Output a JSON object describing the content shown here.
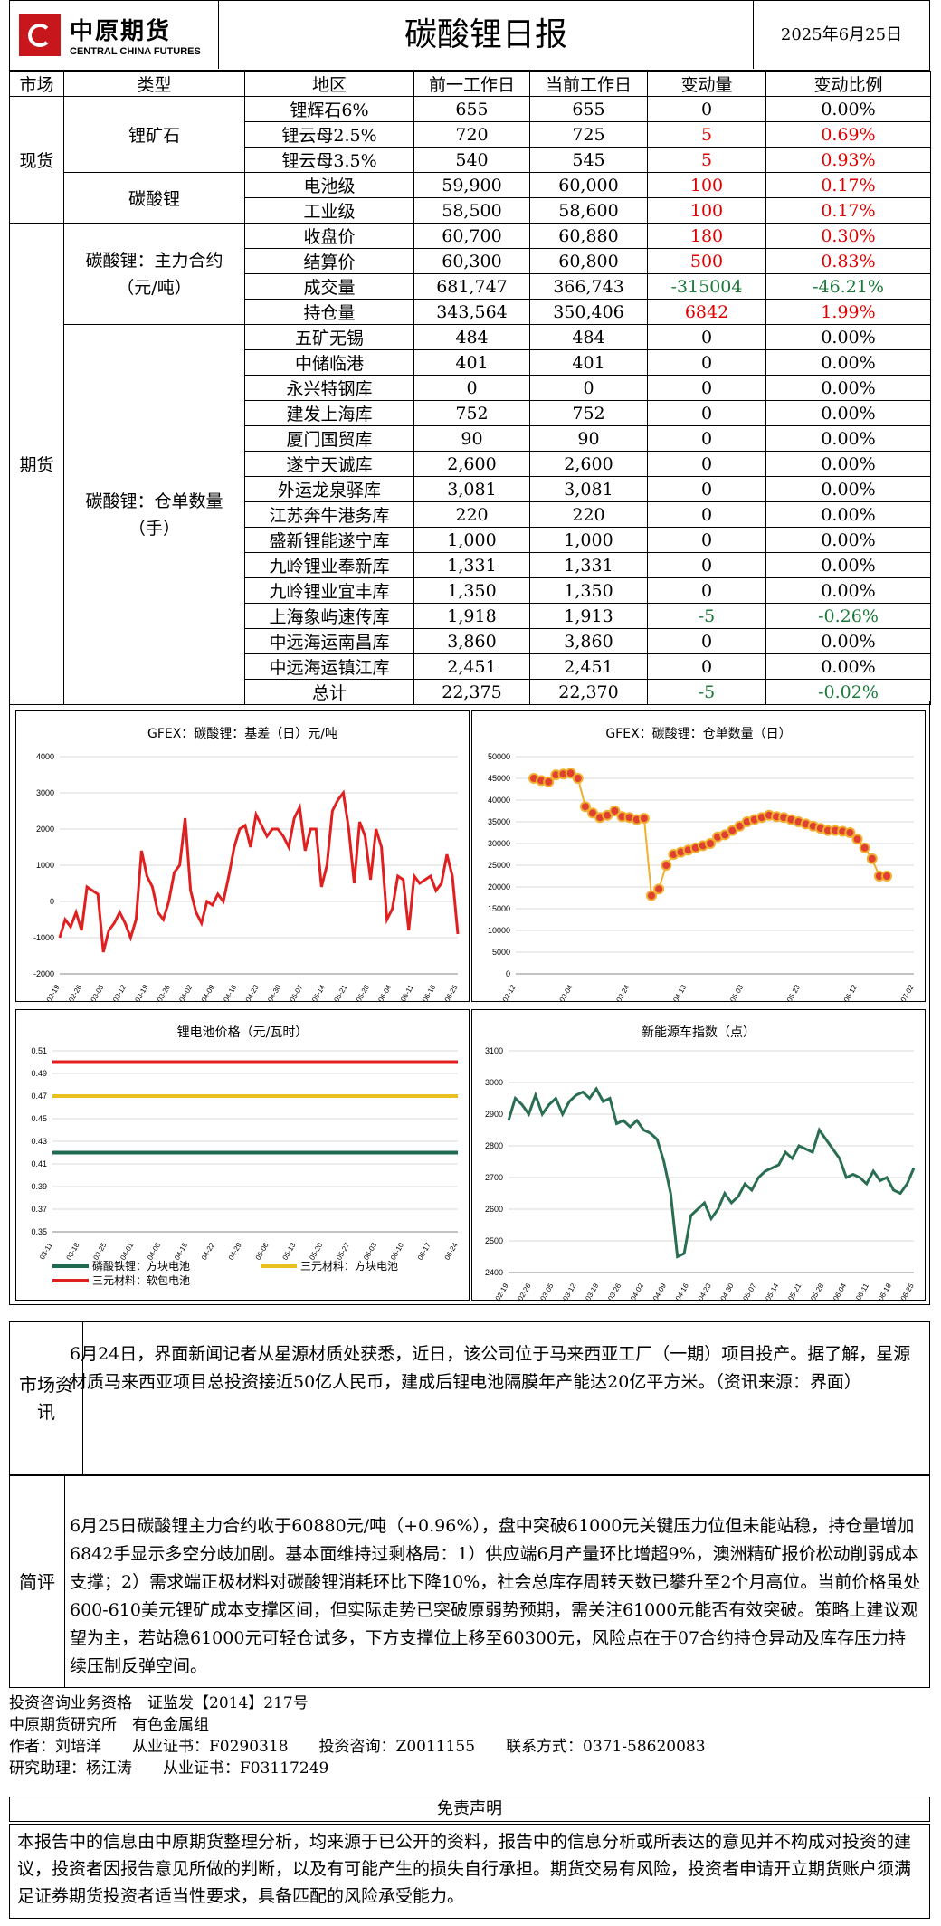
{
  "header": {
    "logo_cn": "中原期货",
    "logo_en": "CENTRAL CHINA FUTURES",
    "title": "碳酸锂日报",
    "date": "2025年6月25日"
  },
  "table": {
    "headers": [
      "市场",
      "类型",
      "地区",
      "前一工作日",
      "当前工作日",
      "变动量",
      "变动比例"
    ],
    "spot_label": "现货",
    "futures_label": "期货",
    "ore_label": "锂矿石",
    "carbonate_label": "碳酸锂",
    "main_contract_label": "碳酸锂：主力合约（元/吨）",
    "warrant_label": "碳酸锂：仓单数量（手）",
    "spot_ore": [
      {
        "name": "锂辉石6%",
        "prev": "655",
        "curr": "655",
        "chg": "0",
        "pct": "0.00%",
        "color": ""
      },
      {
        "name": "锂云母2.5%",
        "prev": "720",
        "curr": "725",
        "chg": "5",
        "pct": "0.69%",
        "color": "red"
      },
      {
        "name": "锂云母3.5%",
        "prev": "540",
        "curr": "545",
        "chg": "5",
        "pct": "0.93%",
        "color": "red"
      }
    ],
    "spot_carbonate": [
      {
        "name": "电池级",
        "prev": "59,900",
        "curr": "60,000",
        "chg": "100",
        "pct": "0.17%",
        "color": "red"
      },
      {
        "name": "工业级",
        "prev": "58,500",
        "curr": "58,600",
        "chg": "100",
        "pct": "0.17%",
        "color": "red"
      }
    ],
    "main_contract": [
      {
        "name": "收盘价",
        "prev": "60,700",
        "curr": "60,880",
        "chg": "180",
        "pct": "0.30%",
        "color": "red"
      },
      {
        "name": "结算价",
        "prev": "60,300",
        "curr": "60,800",
        "chg": "500",
        "pct": "0.83%",
        "color": "red"
      },
      {
        "name": "成交量",
        "prev": "681,747",
        "curr": "366,743",
        "chg": "-315004",
        "pct": "-46.21%",
        "color": "green"
      },
      {
        "name": "持仓量",
        "prev": "343,564",
        "curr": "350,406",
        "chg": "6842",
        "pct": "1.99%",
        "color": "red"
      }
    ],
    "warrants": [
      {
        "name": "五矿无锡",
        "prev": "484",
        "curr": "484",
        "chg": "0",
        "pct": "0.00%",
        "color": ""
      },
      {
        "name": "中储临港",
        "prev": "401",
        "curr": "401",
        "chg": "0",
        "pct": "0.00%",
        "color": ""
      },
      {
        "name": "永兴特钢库",
        "prev": "0",
        "curr": "0",
        "chg": "0",
        "pct": "0.00%",
        "color": ""
      },
      {
        "name": "建发上海库",
        "prev": "752",
        "curr": "752",
        "chg": "0",
        "pct": "0.00%",
        "color": ""
      },
      {
        "name": "厦门国贸库",
        "prev": "90",
        "curr": "90",
        "chg": "0",
        "pct": "0.00%",
        "color": ""
      },
      {
        "name": "遂宁天诚库",
        "prev": "2,600",
        "curr": "2,600",
        "chg": "0",
        "pct": "0.00%",
        "color": ""
      },
      {
        "name": "外运龙泉驿库",
        "prev": "3,081",
        "curr": "3,081",
        "chg": "0",
        "pct": "0.00%",
        "color": ""
      },
      {
        "name": "江苏奔牛港务库",
        "prev": "220",
        "curr": "220",
        "chg": "0",
        "pct": "0.00%",
        "color": ""
      },
      {
        "name": "盛新锂能遂宁库",
        "prev": "1,000",
        "curr": "1,000",
        "chg": "0",
        "pct": "0.00%",
        "color": ""
      },
      {
        "name": "九岭锂业奉新库",
        "prev": "1,331",
        "curr": "1,331",
        "chg": "0",
        "pct": "0.00%",
        "color": ""
      },
      {
        "name": "九岭锂业宜丰库",
        "prev": "1,350",
        "curr": "1,350",
        "chg": "0",
        "pct": "0.00%",
        "color": ""
      },
      {
        "name": "上海象屿速传库",
        "prev": "1,918",
        "curr": "1,913",
        "chg": "-5",
        "pct": "-0.26%",
        "color": "green"
      },
      {
        "name": "中远海运南昌库",
        "prev": "3,860",
        "curr": "3,860",
        "chg": "0",
        "pct": "0.00%",
        "color": ""
      },
      {
        "name": "中远海运镇江库",
        "prev": "2,451",
        "curr": "2,451",
        "chg": "0",
        "pct": "0.00%",
        "color": ""
      },
      {
        "name": "总计",
        "prev": "22,375",
        "curr": "22,370",
        "chg": "-5",
        "pct": "-0.02%",
        "color": "green"
      }
    ]
  },
  "chart_data": [
    {
      "type": "line",
      "title": "GFEX：碳酸锂：基差（日）元/吨",
      "color": "#e02020",
      "ylim": [
        -2000,
        4000
      ],
      "yticks": [
        -2000,
        -1000,
        0,
        1000,
        2000,
        3000,
        4000
      ],
      "x_ticks": [
        "02-19",
        "02-26",
        "03-05",
        "03-12",
        "03-19",
        "03-26",
        "04-02",
        "04-09",
        "04-16",
        "04-23",
        "04-30",
        "05-07",
        "05-14",
        "05-21",
        "05-28",
        "06-04",
        "06-11",
        "06-18",
        "06-25"
      ],
      "values": [
        -1000,
        -500,
        -700,
        -300,
        -800,
        400,
        300,
        200,
        -1400,
        -800,
        -600,
        -300,
        -600,
        -1000,
        -500,
        1400,
        700,
        400,
        -300,
        -500,
        0,
        800,
        1000,
        2300,
        300,
        -300,
        -600,
        0,
        -100,
        200,
        0,
        700,
        1500,
        2000,
        2100,
        1500,
        2400,
        2100,
        1800,
        2000,
        2000,
        1800,
        1500,
        2300,
        2600,
        1400,
        2000,
        2000,
        400,
        1000,
        2500,
        2800,
        3000,
        2000,
        500,
        2200,
        1800,
        600,
        2000,
        1500,
        -500,
        -200,
        700,
        600,
        -800,
        700,
        500,
        600,
        700,
        300,
        500,
        1300,
        700,
        -900
      ]
    },
    {
      "type": "scatter-line",
      "title": "GFEX：碳酸锂：仓单数量（日）",
      "color": "#f0b030",
      "marker_color": "#e04030",
      "ylim": [
        0,
        50000
      ],
      "yticks": [
        0,
        5000,
        10000,
        15000,
        20000,
        25000,
        30000,
        35000,
        40000,
        45000,
        50000
      ],
      "x_ticks": [
        "02-12",
        "03-04",
        "03-24",
        "04-13",
        "05-03",
        "05-23",
        "06-12",
        "07-02"
      ],
      "values": [
        45000,
        44500,
        44200,
        45800,
        46000,
        46200,
        45000,
        38500,
        37000,
        36000,
        36500,
        37500,
        36200,
        36000,
        35500,
        35800,
        18000,
        19500,
        25000,
        27500,
        28000,
        28500,
        29000,
        29500,
        30000,
        31500,
        32000,
        33000,
        34000,
        35000,
        35500,
        36000,
        36500,
        36200,
        36000,
        35500,
        35000,
        34500,
        34000,
        33500,
        33000,
        33000,
        32800,
        32500,
        31000,
        29000,
        26500,
        22500,
        22500
      ]
    },
    {
      "type": "line",
      "title": "锂电池价格（元/瓦时）",
      "ylim": [
        0.35,
        0.51
      ],
      "yticks": [
        0.35,
        0.37,
        0.39,
        0.41,
        0.43,
        0.45,
        0.47,
        0.49,
        0.51
      ],
      "x_ticks": [
        "03-11",
        "03-18",
        "03-25",
        "04-01",
        "04-08",
        "04-15",
        "04-22",
        "04-29",
        "05-06",
        "05-13",
        "05-20",
        "05-27",
        "06-03",
        "06-10",
        "06-17",
        "06-24"
      ],
      "series": [
        {
          "name": "磷酸铁锂：方块电池",
          "color": "#1f6b50",
          "value": 0.42
        },
        {
          "name": "三元材料：方块电池",
          "color": "#e8c020",
          "value": 0.47
        },
        {
          "name": "三元材料：软包电池",
          "color": "#e02020",
          "value": 0.5
        }
      ]
    },
    {
      "type": "line",
      "title": "新能源车指数（点）",
      "color": "#2a6e52",
      "ylim": [
        2400,
        3100
      ],
      "yticks": [
        2400,
        2500,
        2600,
        2700,
        2800,
        2900,
        3000,
        3100
      ],
      "x_ticks": [
        "02-19",
        "02-26",
        "03-05",
        "03-12",
        "03-19",
        "03-26",
        "04-02",
        "04-09",
        "04-16",
        "04-23",
        "04-30",
        "05-07",
        "05-14",
        "05-21",
        "05-28",
        "06-04",
        "06-11",
        "06-18",
        "06-25"
      ],
      "values": [
        2880,
        2950,
        2930,
        2900,
        2960,
        2900,
        2930,
        2950,
        2900,
        2940,
        2960,
        2970,
        2950,
        2980,
        2940,
        2950,
        2870,
        2880,
        2860,
        2880,
        2850,
        2840,
        2820,
        2750,
        2650,
        2450,
        2460,
        2580,
        2600,
        2620,
        2570,
        2600,
        2650,
        2620,
        2640,
        2680,
        2660,
        2700,
        2720,
        2730,
        2740,
        2780,
        2760,
        2800,
        2790,
        2780,
        2850,
        2820,
        2790,
        2760,
        2700,
        2710,
        2700,
        2680,
        2720,
        2690,
        2700,
        2660,
        2650,
        2680,
        2730
      ]
    }
  ],
  "market_news": {
    "label": "市场资讯",
    "text": "6月24日，界面新闻记者从星源材质处获悉，近日，该公司位于马来西亚工厂（一期）项目投产。据了解，星源材质马来西亚项目总投资接近50亿人民币，建成后锂电池隔膜年产能达20亿平方米。（资讯来源：界面）"
  },
  "review": {
    "label": "简评",
    "text": "6月25日碳酸锂主力合约收于60880元/吨（+0.96%），盘中突破61000元关键压力位但未能站稳，持仓量增加6842手显示多空分歧加剧。基本面维持过剩格局：1）供应端6月产量环比增超9%，澳洲精矿报价松动削弱成本支撑；2）需求端正极材料对碳酸锂消耗环比下降10%，社会总库存周转天数已攀升至2个月高位。当前价格虽处600-610美元锂矿成本支撑区间，但实际走势已突破原弱势预期，需关注61000元能否有效突破。策略上建议观望为主，若站稳61000元可轻仓试多，下方支撑位上移至60300元，风险点在于07合约持仓异动及库存压力持续压制反弹空间。"
  },
  "staff": {
    "line1": "投资咨询业务资格　证监发【2014】217号",
    "line2": "中原期货研究所　有色金属组",
    "line3": "作者：刘培洋　　从业证书：F0290318　　投资咨询：Z0011155　　联系方式：0371-58620083",
    "line4": "研究助理：杨江涛　　从业证书：F03117249"
  },
  "disclaimer": {
    "title": "免责声明",
    "text": "本报告中的信息由中原期货整理分析，均来源于已公开的资料，报告中的信息分析或所表达的意见并不构成对投资的建议，投资者因报告意见所做的判断，以及有可能产生的损失自行承担。期货交易有风险，投资者申请开立期货账户须满足证券期货投资者适当性要求，具备匹配的风险承受能力。"
  }
}
